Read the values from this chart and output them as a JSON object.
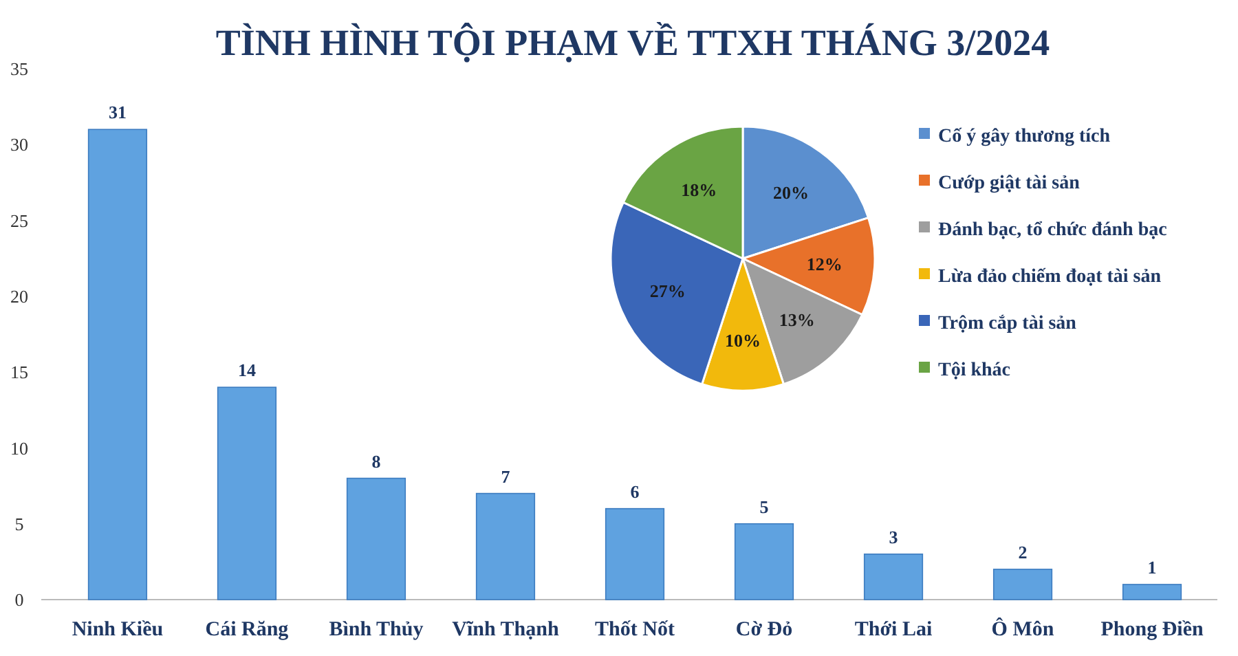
{
  "chart_data": [
    {
      "type": "bar",
      "title": "TÌNH HÌNH TỘI PHẠM VỀ TTXH THÁNG 3/2024",
      "categories": [
        "Ninh Kiều",
        "Cái Răng",
        "Bình Thủy",
        "Vĩnh Thạnh",
        "Thốt Nốt",
        "Cờ Đỏ",
        "Thới Lai",
        "Ô Môn",
        "Phong Điền"
      ],
      "values": [
        31,
        14,
        8,
        7,
        6,
        5,
        3,
        2,
        1
      ],
      "color": "#5fa2e0",
      "ylim": [
        0,
        35
      ],
      "yticks": [
        0,
        5,
        10,
        15,
        20,
        25,
        30,
        35
      ],
      "grid": false,
      "data_labels": true
    },
    {
      "type": "pie",
      "categories": [
        "Cố ý gây thương tích",
        "Cướp giật tài sản",
        "Đánh bạc, tổ chức đánh bạc",
        "Lừa đảo chiếm đoạt tài sản",
        "Trộm cắp tài sản",
        "Tội khác"
      ],
      "values": [
        20,
        12,
        13,
        10,
        27,
        18
      ],
      "colors": [
        "#5b8fcf",
        "#e8712a",
        "#9e9e9e",
        "#f2b90c",
        "#3a66b8",
        "#6aa444"
      ],
      "value_labels": [
        "20%",
        "12%",
        "13%",
        "10%",
        "27%",
        "18%"
      ],
      "legend": "right"
    }
  ]
}
